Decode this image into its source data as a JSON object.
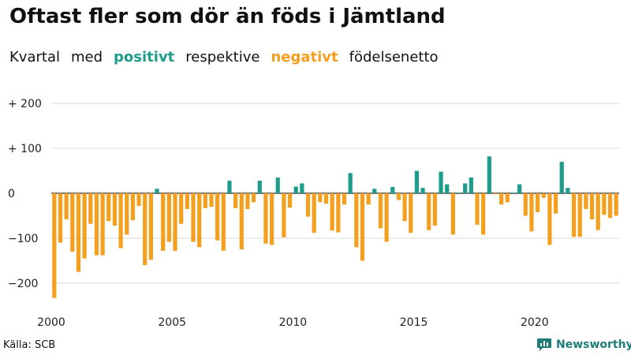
{
  "title": "Oftast fler som dör än föds i Jämtland",
  "subtitle": {
    "w1": "Kvartal",
    "w2": "med",
    "positive": "positivt",
    "w3": "respektive",
    "negative": "negativt",
    "w4": "födelsenetto"
  },
  "source": "Källa: SCB",
  "brand": "Newsworthy",
  "colors": {
    "positive": "#1e9c8c",
    "negative": "#f59f1e",
    "brand": "#1e7d79"
  },
  "chart_data": {
    "type": "bar",
    "title": "Oftast fler som dör än föds i Jämtland",
    "xlabel": "",
    "ylabel": "",
    "ylim": [
      -250,
      200
    ],
    "yticks": [
      200,
      100,
      0,
      -100,
      -200
    ],
    "ytick_labels": [
      "+ 200",
      "+ 100",
      "0",
      "−100",
      "−200"
    ],
    "xticks": [
      2000,
      2005,
      2010,
      2015,
      2020
    ],
    "x_start": 2000,
    "per_year": 4,
    "values": [
      -233,
      -110,
      -58,
      -130,
      -175,
      -145,
      -68,
      -138,
      -138,
      -62,
      -72,
      -122,
      -92,
      -60,
      -28,
      -160,
      -148,
      10,
      -128,
      -108,
      -128,
      -68,
      -35,
      -108,
      -120,
      -33,
      -30,
      -105,
      -128,
      28,
      -33,
      -125,
      -35,
      -20,
      28,
      -112,
      -115,
      35,
      -98,
      -32,
      15,
      22,
      -52,
      -88,
      -20,
      -23,
      -83,
      -87,
      -25,
      45,
      -120,
      -150,
      -25,
      10,
      -78,
      -108,
      14,
      -15,
      -62,
      -88,
      50,
      12,
      -82,
      -72,
      48,
      20,
      -92,
      0,
      22,
      35,
      -70,
      -92,
      82,
      -2,
      -25,
      -20,
      0,
      20,
      -50,
      -85,
      -42,
      -10,
      -115,
      -45,
      70,
      12,
      -97,
      -97,
      -35,
      -58,
      -82,
      -48,
      -55,
      -50
    ]
  }
}
